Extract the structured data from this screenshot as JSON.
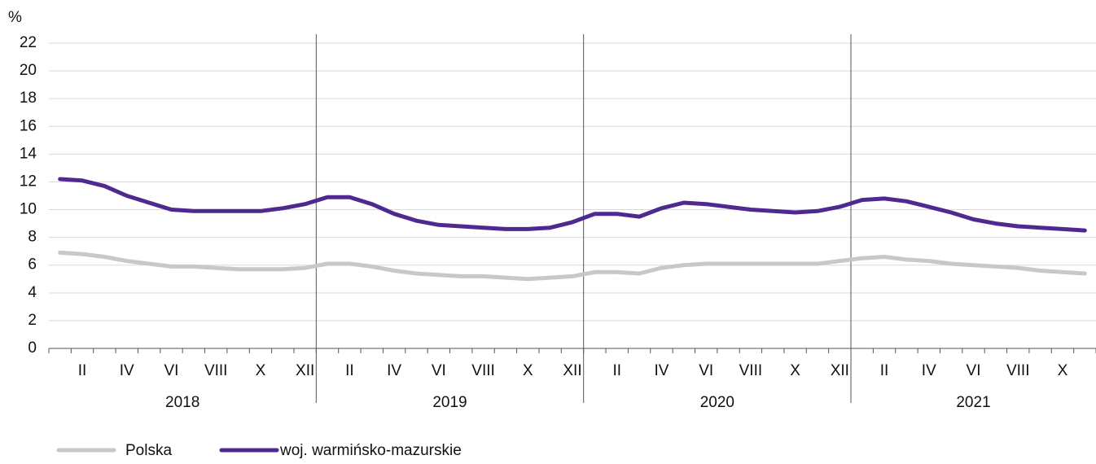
{
  "chart_data": {
    "type": "line",
    "y_label": "%",
    "categories": [
      null,
      "II",
      null,
      "IV",
      null,
      "VI",
      null,
      "VIII",
      null,
      "X",
      null,
      "XII",
      null,
      "II",
      null,
      "IV",
      null,
      "VI",
      null,
      "VIII",
      null,
      "X",
      null,
      "XII",
      null,
      "II",
      null,
      "IV",
      null,
      "VI",
      null,
      "VIII",
      null,
      "X",
      null,
      "XII",
      null,
      "II",
      null,
      "IV",
      null,
      "VI",
      null,
      "VIII",
      null,
      "X",
      null
    ],
    "years": [
      "2018",
      "2019",
      "2020",
      "2021"
    ],
    "series": [
      {
        "name": "Polska",
        "color": "#c8c8c8",
        "values": [
          6.9,
          6.8,
          6.6,
          6.3,
          6.1,
          5.9,
          5.9,
          5.8,
          5.7,
          5.7,
          5.7,
          5.8,
          6.1,
          6.1,
          5.9,
          5.6,
          5.4,
          5.3,
          5.2,
          5.2,
          5.1,
          5.0,
          5.1,
          5.2,
          5.5,
          5.5,
          5.4,
          5.8,
          6.0,
          6.1,
          6.1,
          6.1,
          6.1,
          6.1,
          6.1,
          6.3,
          6.5,
          6.6,
          6.4,
          6.3,
          6.1,
          6.0,
          5.9,
          5.8,
          5.6,
          5.5,
          5.4
        ]
      },
      {
        "name": "woj. warmińsko-mazurskie",
        "color": "#4e2a90",
        "values": [
          12.2,
          12.1,
          11.7,
          11.0,
          10.5,
          10.0,
          9.9,
          9.9,
          9.9,
          9.9,
          10.1,
          10.4,
          10.9,
          10.9,
          10.4,
          9.7,
          9.2,
          8.9,
          8.8,
          8.7,
          8.6,
          8.6,
          8.7,
          9.1,
          9.7,
          9.7,
          9.5,
          10.1,
          10.5,
          10.4,
          10.2,
          10.0,
          9.9,
          9.8,
          9.9,
          10.2,
          10.7,
          10.8,
          10.6,
          10.2,
          9.8,
          9.3,
          9.0,
          8.8,
          8.7,
          8.6,
          8.5
        ]
      }
    ],
    "ylim": [
      0,
      22
    ],
    "yticks": [
      0,
      2,
      4,
      6,
      8,
      10,
      12,
      14,
      16,
      18,
      20,
      22
    ],
    "grid": true
  }
}
